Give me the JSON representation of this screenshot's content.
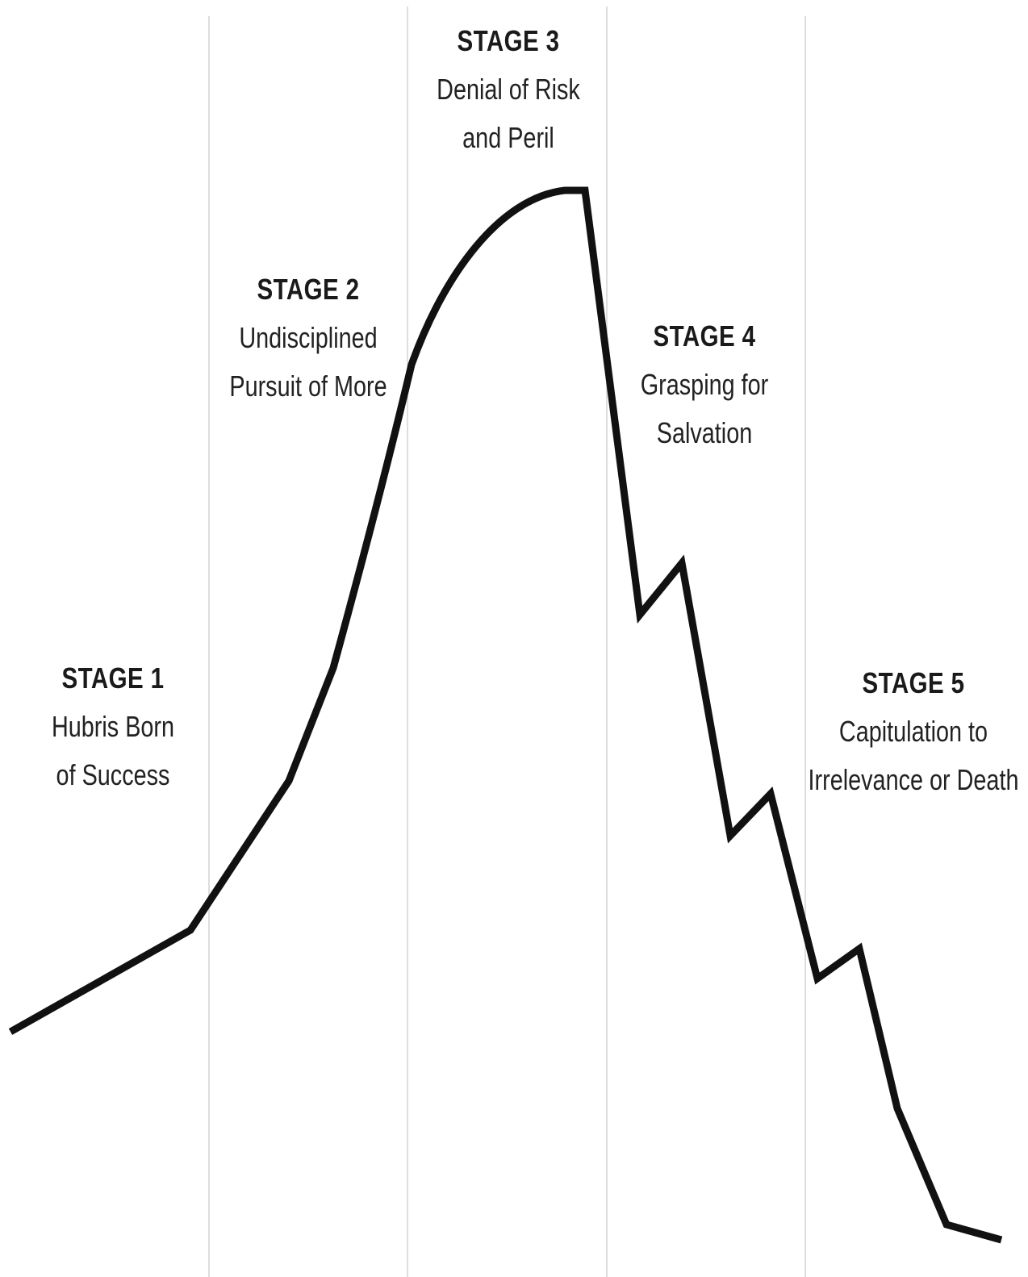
{
  "stages": [
    {
      "title": "STAGE 1",
      "line1": "Hubris Born",
      "line2": "of Success"
    },
    {
      "title": "STAGE 2",
      "line1": "Undisciplined",
      "line2": "Pursuit of More"
    },
    {
      "title": "STAGE 3",
      "line1": "Denial of Risk",
      "line2": "and Peril"
    },
    {
      "title": "STAGE 4",
      "line1": "Grasping for",
      "line2": "Salvation"
    },
    {
      "title": "STAGE 5",
      "line1": "Capitulation to",
      "line2": "Irrelevance or Death"
    }
  ],
  "colors": {
    "curve": "#111111",
    "divider": "#c9c9c9",
    "background": "#ffffff"
  }
}
